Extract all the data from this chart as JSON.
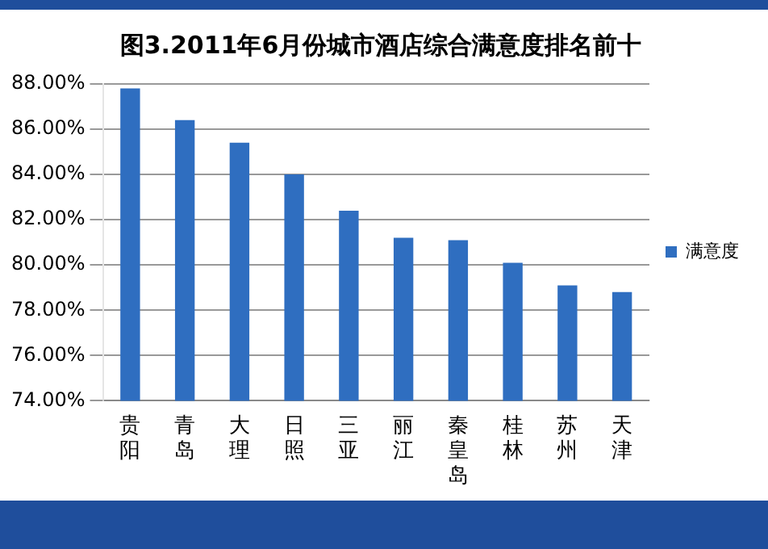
{
  "chart_data": {
    "type": "bar",
    "title": "图3.2011年6月份城市酒店综合满意度排名前十",
    "categories": [
      "贵阳",
      "青岛",
      "大理",
      "日照",
      "三亚",
      "丽江",
      "秦皇岛",
      "桂林",
      "苏州",
      "天津"
    ],
    "series": [
      {
        "name": "满意度",
        "color": "#2f6ec0",
        "values": [
          87.8,
          86.4,
          85.4,
          84.0,
          82.4,
          81.2,
          81.1,
          80.1,
          79.1,
          78.8
        ]
      }
    ],
    "ylim": [
      74,
      88
    ],
    "yticks": [
      {
        "value": 74,
        "label": "74.00%"
      },
      {
        "value": 76,
        "label": "76.00%"
      },
      {
        "value": 78,
        "label": "78.00%"
      },
      {
        "value": 80,
        "label": "80.00%"
      },
      {
        "value": 82,
        "label": "82.00%"
      },
      {
        "value": 84,
        "label": "84.00%"
      },
      {
        "value": 86,
        "label": "86.00%"
      },
      {
        "value": 88,
        "label": "88.00%"
      }
    ],
    "grid": "y",
    "legend": "right"
  }
}
